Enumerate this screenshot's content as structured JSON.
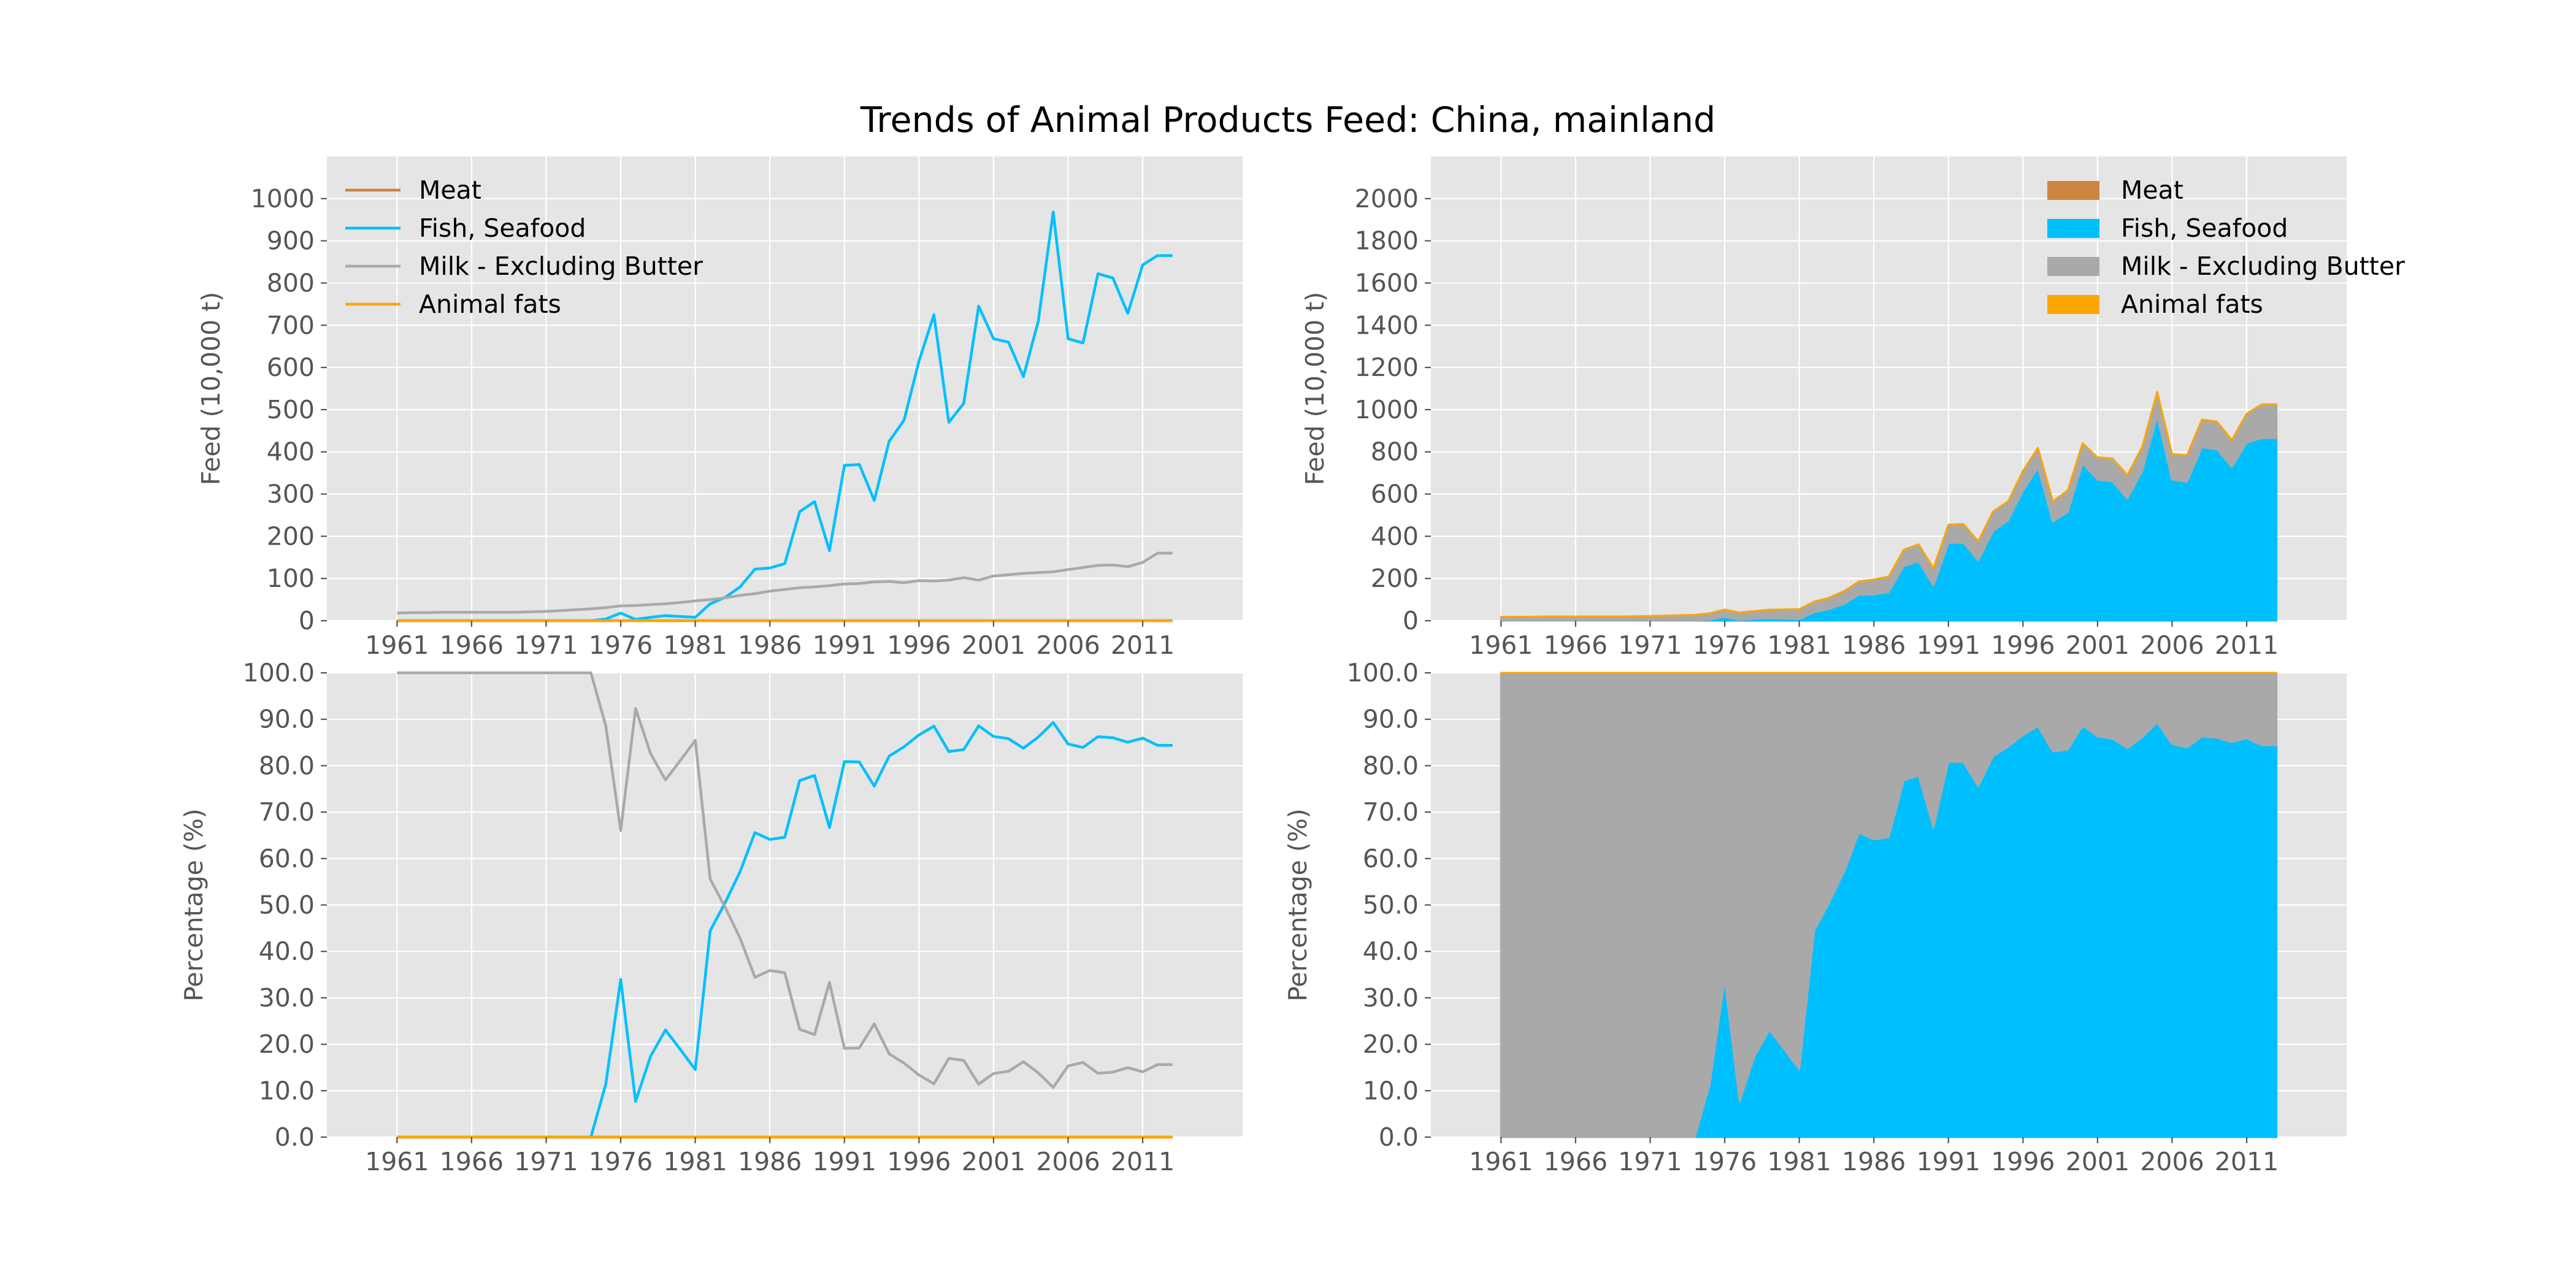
{
  "chart_data": {
    "title": "Trends of Animal Products Feed: China, mainland",
    "years": [
      1961,
      1962,
      1963,
      1964,
      1965,
      1966,
      1967,
      1968,
      1969,
      1970,
      1971,
      1972,
      1973,
      1974,
      1975,
      1976,
      1977,
      1978,
      1979,
      1980,
      1981,
      1982,
      1983,
      1984,
      1985,
      1986,
      1987,
      1988,
      1989,
      1990,
      1991,
      1992,
      1993,
      1994,
      1995,
      1996,
      1997,
      1998,
      1999,
      2000,
      2001,
      2002,
      2003,
      2004,
      2005,
      2006,
      2007,
      2008,
      2009,
      2010,
      2011,
      2012,
      2013
    ],
    "x_ticks": [
      1961,
      1966,
      1971,
      1976,
      1981,
      1986,
      1991,
      1996,
      2001,
      2006,
      2011
    ],
    "colors": {
      "Meat": "#cd853f",
      "Fish, Seafood": "#00bfff",
      "Milk - Excluding Butter": "#a9a9a9",
      "Animal fats": "#ffa500",
      "axes_bg": "#e5e5e5",
      "grid": "#ffffff"
    },
    "series": [
      {
        "name": "Meat",
        "values": [
          0,
          0,
          0,
          0,
          0,
          0,
          0,
          0,
          0,
          0,
          0,
          0,
          0,
          0,
          0,
          0,
          0,
          0,
          0,
          0,
          0,
          0,
          0,
          0,
          0,
          0,
          0,
          0,
          0,
          0,
          0,
          0,
          0,
          0,
          0,
          0,
          0,
          0,
          0,
          0,
          0,
          0,
          0,
          0,
          0,
          0,
          0,
          0,
          0,
          0,
          0,
          0,
          0
        ]
      },
      {
        "name": "Fish, Seafood",
        "values": [
          0,
          0,
          0,
          0,
          0,
          0,
          0,
          0,
          0,
          0,
          0,
          0,
          0,
          0,
          4,
          18,
          3,
          8,
          12,
          10,
          8,
          40,
          55,
          80,
          122,
          125,
          135,
          258,
          282,
          166,
          368,
          370,
          285,
          425,
          475,
          615,
          725,
          470,
          515,
          745,
          668,
          660,
          578,
          710,
          968,
          668,
          658,
          822,
          812,
          728,
          843,
          865,
          865
        ]
      },
      {
        "name": "Milk - Excluding Butter",
        "values": [
          18,
          19,
          19,
          20,
          20,
          20,
          20,
          20,
          20,
          21,
          22,
          24,
          26,
          28,
          31,
          35,
          36,
          38,
          40,
          43,
          47,
          50,
          54,
          60,
          64,
          70,
          74,
          78,
          80,
          83,
          87,
          88,
          92,
          93,
          90,
          95,
          94,
          96,
          102,
          96,
          106,
          109,
          112,
          114,
          116,
          121,
          126,
          131,
          132,
          128,
          138,
          160,
          160
        ]
      },
      {
        "name": "Animal fats",
        "values": [
          0,
          0,
          0,
          0,
          0,
          0,
          0,
          0,
          0,
          0,
          0,
          0,
          0,
          0,
          0,
          0,
          0,
          0,
          0,
          0,
          0,
          0,
          0,
          0,
          0,
          0,
          0,
          0,
          0,
          0,
          0,
          0,
          0,
          0,
          0,
          0,
          0,
          0,
          0,
          0,
          0,
          0,
          0,
          0,
          0,
          0,
          0,
          0,
          0,
          0,
          0,
          0,
          0
        ]
      }
    ],
    "charts": [
      {
        "id": "top-left",
        "type": "line",
        "mode": "absolute",
        "ylabel": "Feed (10,000 t)",
        "ylim": [
          0,
          1100
        ],
        "y_ticks": [
          0,
          100,
          200,
          300,
          400,
          500,
          600,
          700,
          800,
          900,
          1000
        ],
        "y_tick_labels": [
          "0",
          "100",
          "200",
          "300",
          "400",
          "500",
          "600",
          "700",
          "800",
          "900",
          "1000"
        ],
        "legend": "top-left",
        "legend_style": "line"
      },
      {
        "id": "top-right",
        "type": "area",
        "mode": "absolute",
        "ylabel": "Feed (10,000 t)",
        "ylim": [
          0,
          2200
        ],
        "y_ticks": [
          0,
          200,
          400,
          600,
          800,
          1000,
          1200,
          1400,
          1600,
          1800,
          2000
        ],
        "y_tick_labels": [
          "0",
          "200",
          "400",
          "600",
          "800",
          "1000",
          "1200",
          "1400",
          "1600",
          "1800",
          "2000"
        ],
        "legend": "top-right",
        "legend_style": "patch"
      },
      {
        "id": "bottom-left",
        "type": "line",
        "mode": "percent",
        "ylabel": "Percentage (%)",
        "ylim": [
          0,
          100
        ],
        "y_ticks": [
          0,
          10,
          20,
          30,
          40,
          50,
          60,
          70,
          80,
          90,
          100
        ],
        "y_tick_labels": [
          "0.0",
          "10.0",
          "20.0",
          "30.0",
          "40.0",
          "50.0",
          "60.0",
          "70.0",
          "80.0",
          "90.0",
          "100.0"
        ],
        "legend": "none"
      },
      {
        "id": "bottom-right",
        "type": "area",
        "mode": "percent",
        "ylabel": "Percentage (%)",
        "ylim": [
          0,
          100
        ],
        "y_ticks": [
          0,
          10,
          20,
          30,
          40,
          50,
          60,
          70,
          80,
          90,
          100
        ],
        "y_tick_labels": [
          "0.0",
          "10.0",
          "20.0",
          "30.0",
          "40.0",
          "50.0",
          "60.0",
          "70.0",
          "80.0",
          "90.0",
          "100.0"
        ],
        "legend": "none"
      }
    ],
    "grid": true
  }
}
